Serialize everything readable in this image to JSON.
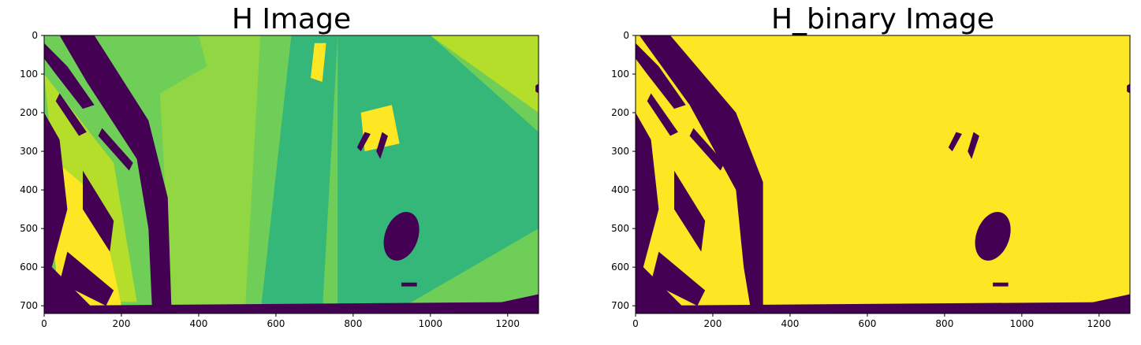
{
  "figure": {
    "panels": [
      {
        "title": "H Image",
        "x_ticks": [
          "0",
          "200",
          "400",
          "600",
          "800",
          "1000",
          "1200"
        ],
        "y_ticks": [
          "0",
          "100",
          "200",
          "300",
          "400",
          "500",
          "600",
          "700"
        ],
        "colormap": "viridis"
      },
      {
        "title": "H_binary Image",
        "x_ticks": [
          "0",
          "200",
          "400",
          "600",
          "800",
          "1000",
          "1200"
        ],
        "y_ticks": [
          "0",
          "100",
          "200",
          "300",
          "400",
          "500",
          "600",
          "700"
        ],
        "colormap": "binary"
      }
    ],
    "colors": {
      "dark": "#440154",
      "yellow": "#fde725",
      "green_mid": "#35b779",
      "green_light": "#6ece58",
      "green_pale": "#90d743",
      "teal": "#21918c",
      "yellow_green": "#b5de2b"
    }
  },
  "chart_data": [
    {
      "type": "heatmap",
      "title": "H Image",
      "xlim": [
        0,
        1280
      ],
      "ylim": [
        720,
        0
      ],
      "x_ticks": [
        0,
        200,
        400,
        600,
        800,
        1000,
        1200
      ],
      "y_ticks": [
        0,
        100,
        200,
        300,
        400,
        500,
        600,
        700
      ]
    },
    {
      "type": "heatmap",
      "title": "H_binary Image",
      "xlim": [
        0,
        1280
      ],
      "ylim": [
        720,
        0
      ],
      "x_ticks": [
        0,
        200,
        400,
        600,
        800,
        1000,
        1200
      ],
      "y_ticks": [
        0,
        100,
        200,
        300,
        400,
        500,
        600,
        700
      ]
    }
  ]
}
